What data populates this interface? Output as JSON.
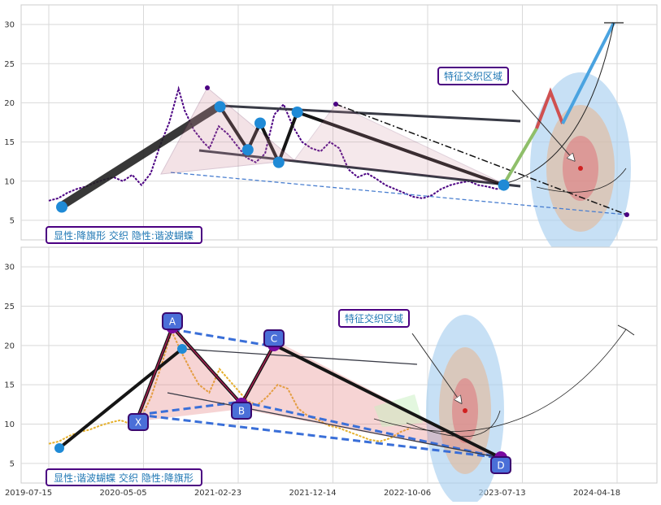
{
  "chart_data": [
    {
      "type": "line",
      "panel": "top",
      "ylim": [
        2.5,
        32.5
      ],
      "yticks": [
        "5",
        "10",
        "15",
        "20",
        "25",
        "30"
      ],
      "grid": true,
      "price_series": {
        "color": "#4b0082",
        "x": [
          0.0,
          0.3,
          0.6,
          0.9,
          1.2,
          1.5,
          1.8,
          2.1,
          2.4,
          2.7,
          3.0,
          3.3,
          3.6,
          3.9,
          4.2,
          4.4,
          4.7,
          5.0,
          5.2,
          5.5,
          5.8,
          6.1,
          6.4,
          6.7,
          7.0,
          7.3,
          7.6,
          7.9,
          8.2,
          8.5,
          8.8,
          9.1,
          9.4,
          9.7,
          10.0,
          10.3,
          10.6,
          10.9,
          11.2,
          11.5,
          11.8,
          12.1,
          12.4,
          12.7,
          13.0,
          13.3,
          13.6,
          13.9,
          14.2,
          14.5,
          14.7
        ],
        "y": [
          7.5,
          7.8,
          8.5,
          9.0,
          9.3,
          9.8,
          10.2,
          10.5,
          10.0,
          10.8,
          9.5,
          11.0,
          14.5,
          17.5,
          21.8,
          19.0,
          16.5,
          15.0,
          14.2,
          17.0,
          16.0,
          14.5,
          13.0,
          12.4,
          13.5,
          18.5,
          19.8,
          17.0,
          15.0,
          14.2,
          13.8,
          15.0,
          14.2,
          11.5,
          10.5,
          11.0,
          10.3,
          9.5,
          9.0,
          8.5,
          8.0,
          7.8,
          8.2,
          9.0,
          9.5,
          9.8,
          10.0,
          9.5,
          9.3,
          9.0,
          9.2
        ]
      },
      "pattern_points": [
        {
          "x": 0.2,
          "y": 6.7
        },
        {
          "x": 3.7,
          "y": 19.5
        },
        {
          "x": 4.6,
          "y": 14.0
        },
        {
          "x": 5.0,
          "y": 17.4
        },
        {
          "x": 5.6,
          "y": 12.4
        },
        {
          "x": 6.2,
          "y": 18.8
        },
        {
          "x": 10.7,
          "y": 9.5
        }
      ],
      "callout": "特征交织区域",
      "legend_text": "显性:降旗形 交织 隐性:谐波蝴蝶"
    },
    {
      "type": "line",
      "panel": "bottom",
      "ylim": [
        2.5,
        32.5
      ],
      "yticks": [
        "5",
        "10",
        "15",
        "20",
        "25",
        "30"
      ],
      "xticks": [
        "2019-07-15",
        "2020-05-05",
        "2021-02-23",
        "2021-12-14",
        "2022-10-06",
        "2023-07-13",
        "2024-04-18"
      ],
      "grid": true,
      "price_series": {
        "color": "#e6b12e",
        "x": [
          0.0,
          0.3,
          0.6,
          0.9,
          1.2,
          1.5,
          1.8,
          2.1,
          2.4,
          2.7,
          3.0,
          3.3,
          3.6,
          3.9,
          4.2,
          4.4,
          4.7,
          5.0,
          5.2,
          5.5,
          5.8,
          6.1,
          6.4,
          6.7,
          7.0,
          7.3,
          7.6,
          7.9,
          8.2,
          8.5,
          8.8,
          9.1,
          9.4,
          9.7,
          10.0,
          10.3,
          10.6
        ],
        "y": [
          7.5,
          7.8,
          8.5,
          9.0,
          9.3,
          9.8,
          10.2,
          10.5,
          10.0,
          10.8,
          13.5,
          17.5,
          21.8,
          19.0,
          16.5,
          15.0,
          14.0,
          17.0,
          16.0,
          14.5,
          13.0,
          12.4,
          13.5,
          15.0,
          14.5,
          12.0,
          11.0,
          10.5,
          9.8,
          9.5,
          9.0,
          8.5,
          8.0,
          7.8,
          8.2,
          9.0,
          9.5
        ]
      },
      "harmonic_points": [
        {
          "label": "X",
          "x": 2.1,
          "y": 10.3
        },
        {
          "label": "A",
          "x": 3.2,
          "y": 22.7
        },
        {
          "label": "B",
          "x": 4.7,
          "y": 12.0
        },
        {
          "label": "C",
          "x": 5.8,
          "y": 20.0
        },
        {
          "label": "D",
          "x": 10.0,
          "y": 5.5
        }
      ],
      "callout": "特征交织区域",
      "legend_text": "显性:谐波蝴蝶 交织 隐性:降旗形"
    }
  ]
}
